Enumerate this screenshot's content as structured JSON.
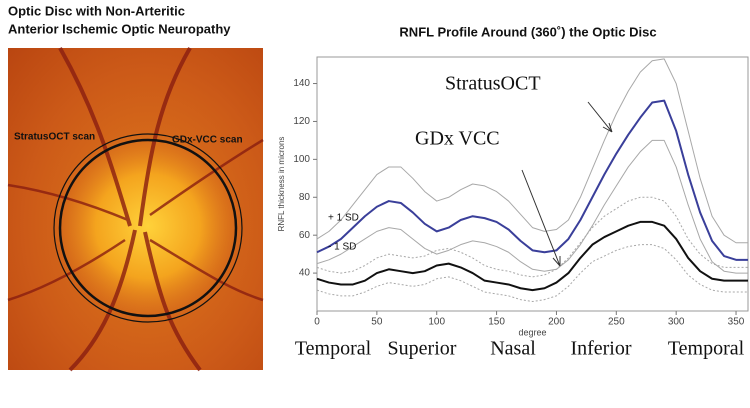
{
  "left_panel": {
    "title_lines": [
      "Optic Disc with Non-Arteritic",
      "Anterior Ischemic Optic Neuropathy"
    ],
    "scan_labels": [
      "StratusOCT scan",
      "GDx-VCC scan"
    ]
  },
  "chart_data": {
    "type": "line",
    "title": "RNFL Profile Around (360˚) the Optic Disc",
    "x_label": "degree",
    "y_label": "RNFL thickness in microns",
    "xlim": [
      0,
      360
    ],
    "ylim": [
      20,
      154
    ],
    "xticks": [
      0,
      50,
      100,
      150,
      200,
      250,
      300,
      350
    ],
    "yticks": [
      40,
      60,
      80,
      100,
      120,
      140
    ],
    "x": [
      0,
      10,
      20,
      30,
      40,
      50,
      60,
      70,
      80,
      90,
      100,
      110,
      120,
      130,
      140,
      150,
      160,
      170,
      180,
      190,
      200,
      210,
      220,
      230,
      240,
      250,
      260,
      270,
      280,
      290,
      300,
      310,
      320,
      330,
      340,
      350,
      360
    ],
    "series": [
      {
        "name": "StratusOCT",
        "color": "#3a3f9a",
        "line_style": "solid",
        "values": [
          51,
          54,
          58,
          64,
          70,
          75,
          78,
          77,
          72,
          66,
          62,
          64,
          68,
          70,
          69,
          67,
          63,
          57,
          52,
          51,
          52,
          58,
          68,
          80,
          92,
          103,
          113,
          122,
          130,
          131,
          115,
          92,
          72,
          57,
          49,
          47,
          47
        ]
      },
      {
        "name": "+ 1 SD",
        "color": "#a8a8a8",
        "line_style": "solid",
        "values": [
          58,
          62,
          68,
          76,
          84,
          92,
          96,
          96,
          90,
          83,
          78,
          80,
          84,
          87,
          86,
          83,
          78,
          71,
          64,
          62,
          63,
          68,
          80,
          95,
          110,
          124,
          136,
          146,
          152,
          153,
          140,
          115,
          90,
          70,
          60,
          56,
          56
        ]
      },
      {
        "name": "- 1 SD",
        "color": "#a8a8a8",
        "line_style": "solid",
        "values": [
          45,
          47,
          50,
          54,
          58,
          62,
          64,
          63,
          58,
          53,
          50,
          52,
          55,
          57,
          56,
          54,
          51,
          46,
          42,
          41,
          42,
          47,
          55,
          65,
          76,
          86,
          96,
          104,
          110,
          110,
          96,
          76,
          58,
          46,
          41,
          40,
          40
        ]
      },
      {
        "name": "GDx VCC",
        "color": "#111111",
        "line_style": "solid",
        "values": [
          37,
          35,
          34,
          34,
          36,
          40,
          42,
          41,
          40,
          41,
          44,
          45,
          43,
          40,
          36,
          35,
          34,
          32,
          31,
          32,
          35,
          40,
          48,
          55,
          59,
          62,
          65,
          67,
          67,
          65,
          58,
          48,
          41,
          37,
          36,
          36,
          36
        ]
      },
      {
        "name": "GDx +1 SD",
        "color": "#a8a8a8",
        "line_style": "dotted",
        "values": [
          43,
          41,
          40,
          41,
          44,
          48,
          50,
          49,
          48,
          49,
          52,
          53,
          51,
          48,
          44,
          42,
          41,
          39,
          38,
          39,
          42,
          48,
          56,
          64,
          70,
          74,
          78,
          80,
          80,
          78,
          70,
          58,
          50,
          45,
          43,
          43,
          43
        ]
      },
      {
        "name": "GDx -1 SD",
        "color": "#a8a8a8",
        "line_style": "dotted",
        "values": [
          31,
          29,
          28,
          28,
          30,
          33,
          35,
          34,
          33,
          34,
          37,
          38,
          36,
          33,
          30,
          29,
          28,
          26,
          25,
          26,
          28,
          33,
          40,
          46,
          49,
          52,
          54,
          55,
          55,
          53,
          47,
          39,
          34,
          31,
          30,
          30,
          30
        ]
      }
    ],
    "annotations": [
      "StratusOCT",
      "GDx VCC",
      "+ 1 SD",
      "- 1 SD"
    ],
    "region_labels": [
      "Temporal",
      "Superior",
      "Nasal",
      "Inferior",
      "Temporal"
    ]
  }
}
